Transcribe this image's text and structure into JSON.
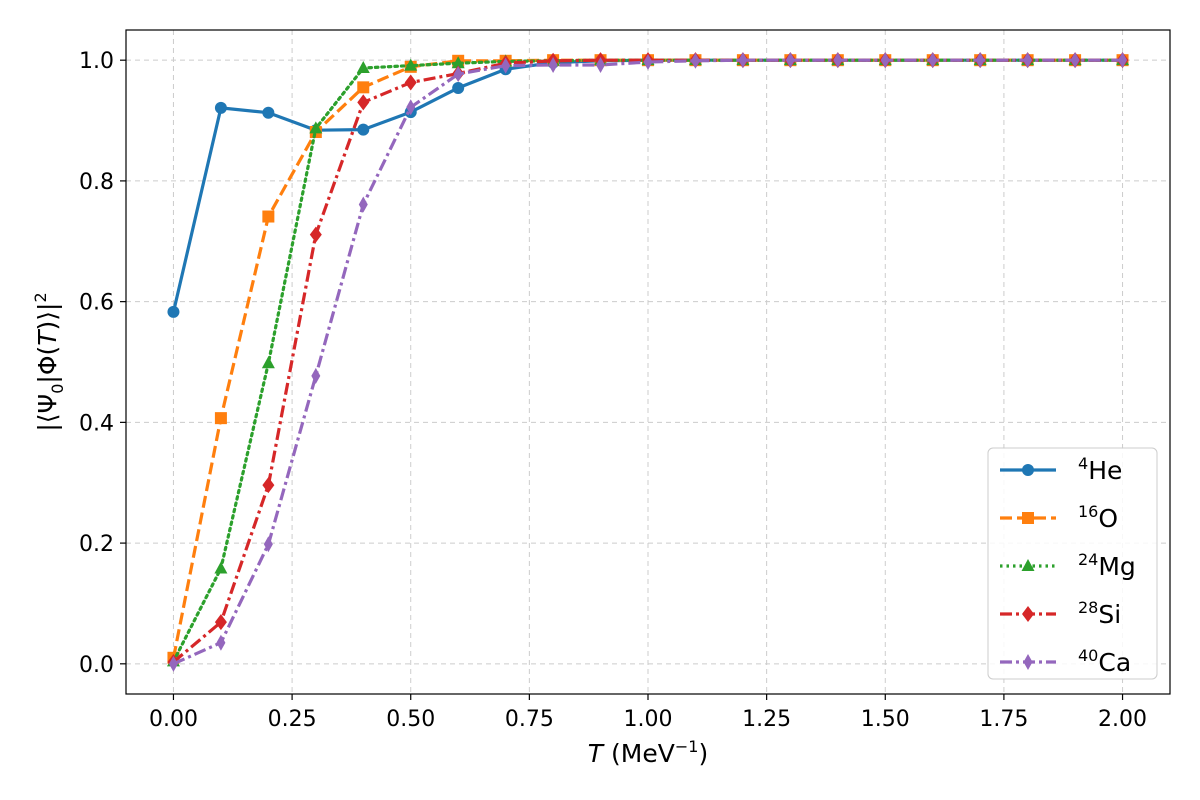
{
  "chart_data": {
    "type": "line",
    "title": "",
    "xlabel": {
      "italic": "T",
      "unit_prefix": " (MeV",
      "unit_sup": "−1",
      "unit_suffix": ")"
    },
    "ylabel": {
      "main": "|⟨Ψ",
      "sub": "0",
      "mid": "|Φ(",
      "italic": "T",
      "end": ")⟩|",
      "sup": "2"
    },
    "xlim": [
      -0.1,
      2.1
    ],
    "ylim": [
      -0.05,
      1.05
    ],
    "xticks": [
      0.0,
      0.25,
      0.5,
      0.75,
      1.0,
      1.25,
      1.5,
      1.75,
      2.0
    ],
    "xtick_labels": [
      "0.00",
      "0.25",
      "0.50",
      "0.75",
      "1.00",
      "1.25",
      "1.50",
      "1.75",
      "2.00"
    ],
    "yticks": [
      0.0,
      0.2,
      0.4,
      0.6,
      0.8,
      1.0
    ],
    "ytick_labels": [
      "0.0",
      "0.2",
      "0.4",
      "0.6",
      "0.8",
      "1.0"
    ],
    "grid": true,
    "legend_position": "lower-right",
    "x": [
      0.0,
      0.1,
      0.2,
      0.3,
      0.4,
      0.5,
      0.6,
      0.7,
      0.8,
      0.9,
      1.0,
      1.1,
      1.2,
      1.3,
      1.4,
      1.5,
      1.6,
      1.7,
      1.8,
      1.9,
      2.0
    ],
    "series": [
      {
        "name": "He",
        "mass": "4",
        "color": "#1f77b4",
        "dash": "solid",
        "marker": "circle",
        "values": [
          0.583,
          0.921,
          0.913,
          0.884,
          0.885,
          0.914,
          0.954,
          0.985,
          0.996,
          0.999,
          1.0,
          1.0,
          1.0,
          1.0,
          1.0,
          1.0,
          1.0,
          1.0,
          1.0,
          1.0,
          1.0
        ]
      },
      {
        "name": "O",
        "mass": "16",
        "color": "#ff7f0e",
        "dash": "dashed",
        "marker": "square",
        "values": [
          0.01,
          0.407,
          0.741,
          0.881,
          0.955,
          0.989,
          0.999,
          0.999,
          1.0,
          1.0,
          1.0,
          1.0,
          1.0,
          1.0,
          1.0,
          1.0,
          1.0,
          1.0,
          1.0,
          1.0,
          1.0
        ]
      },
      {
        "name": "Mg",
        "mass": "24",
        "color": "#2ca02c",
        "dash": "dotted",
        "marker": "triangle",
        "values": [
          0.004,
          0.158,
          0.498,
          0.887,
          0.987,
          0.991,
          0.995,
          0.998,
          0.999,
          1.0,
          1.0,
          1.0,
          1.0,
          1.0,
          1.0,
          1.0,
          1.0,
          1.0,
          1.0,
          1.0,
          1.0
        ]
      },
      {
        "name": "Si",
        "mass": "28",
        "color": "#d62728",
        "dash": "dashdot",
        "marker": "diamond",
        "values": [
          0.003,
          0.069,
          0.296,
          0.711,
          0.93,
          0.963,
          0.978,
          0.995,
          0.999,
          1.0,
          1.0,
          1.0,
          1.0,
          1.0,
          1.0,
          1.0,
          1.0,
          1.0,
          1.0,
          1.0,
          1.0
        ]
      },
      {
        "name": "Ca",
        "mass": "40",
        "color": "#9467bd",
        "dash": "dashdot",
        "marker": "thin-diamond",
        "values": [
          0.0,
          0.035,
          0.198,
          0.477,
          0.761,
          0.922,
          0.977,
          0.991,
          0.992,
          0.992,
          0.997,
          0.999,
          1.0,
          1.0,
          1.0,
          1.0,
          1.0,
          1.0,
          1.0,
          1.0,
          1.0
        ]
      }
    ]
  }
}
